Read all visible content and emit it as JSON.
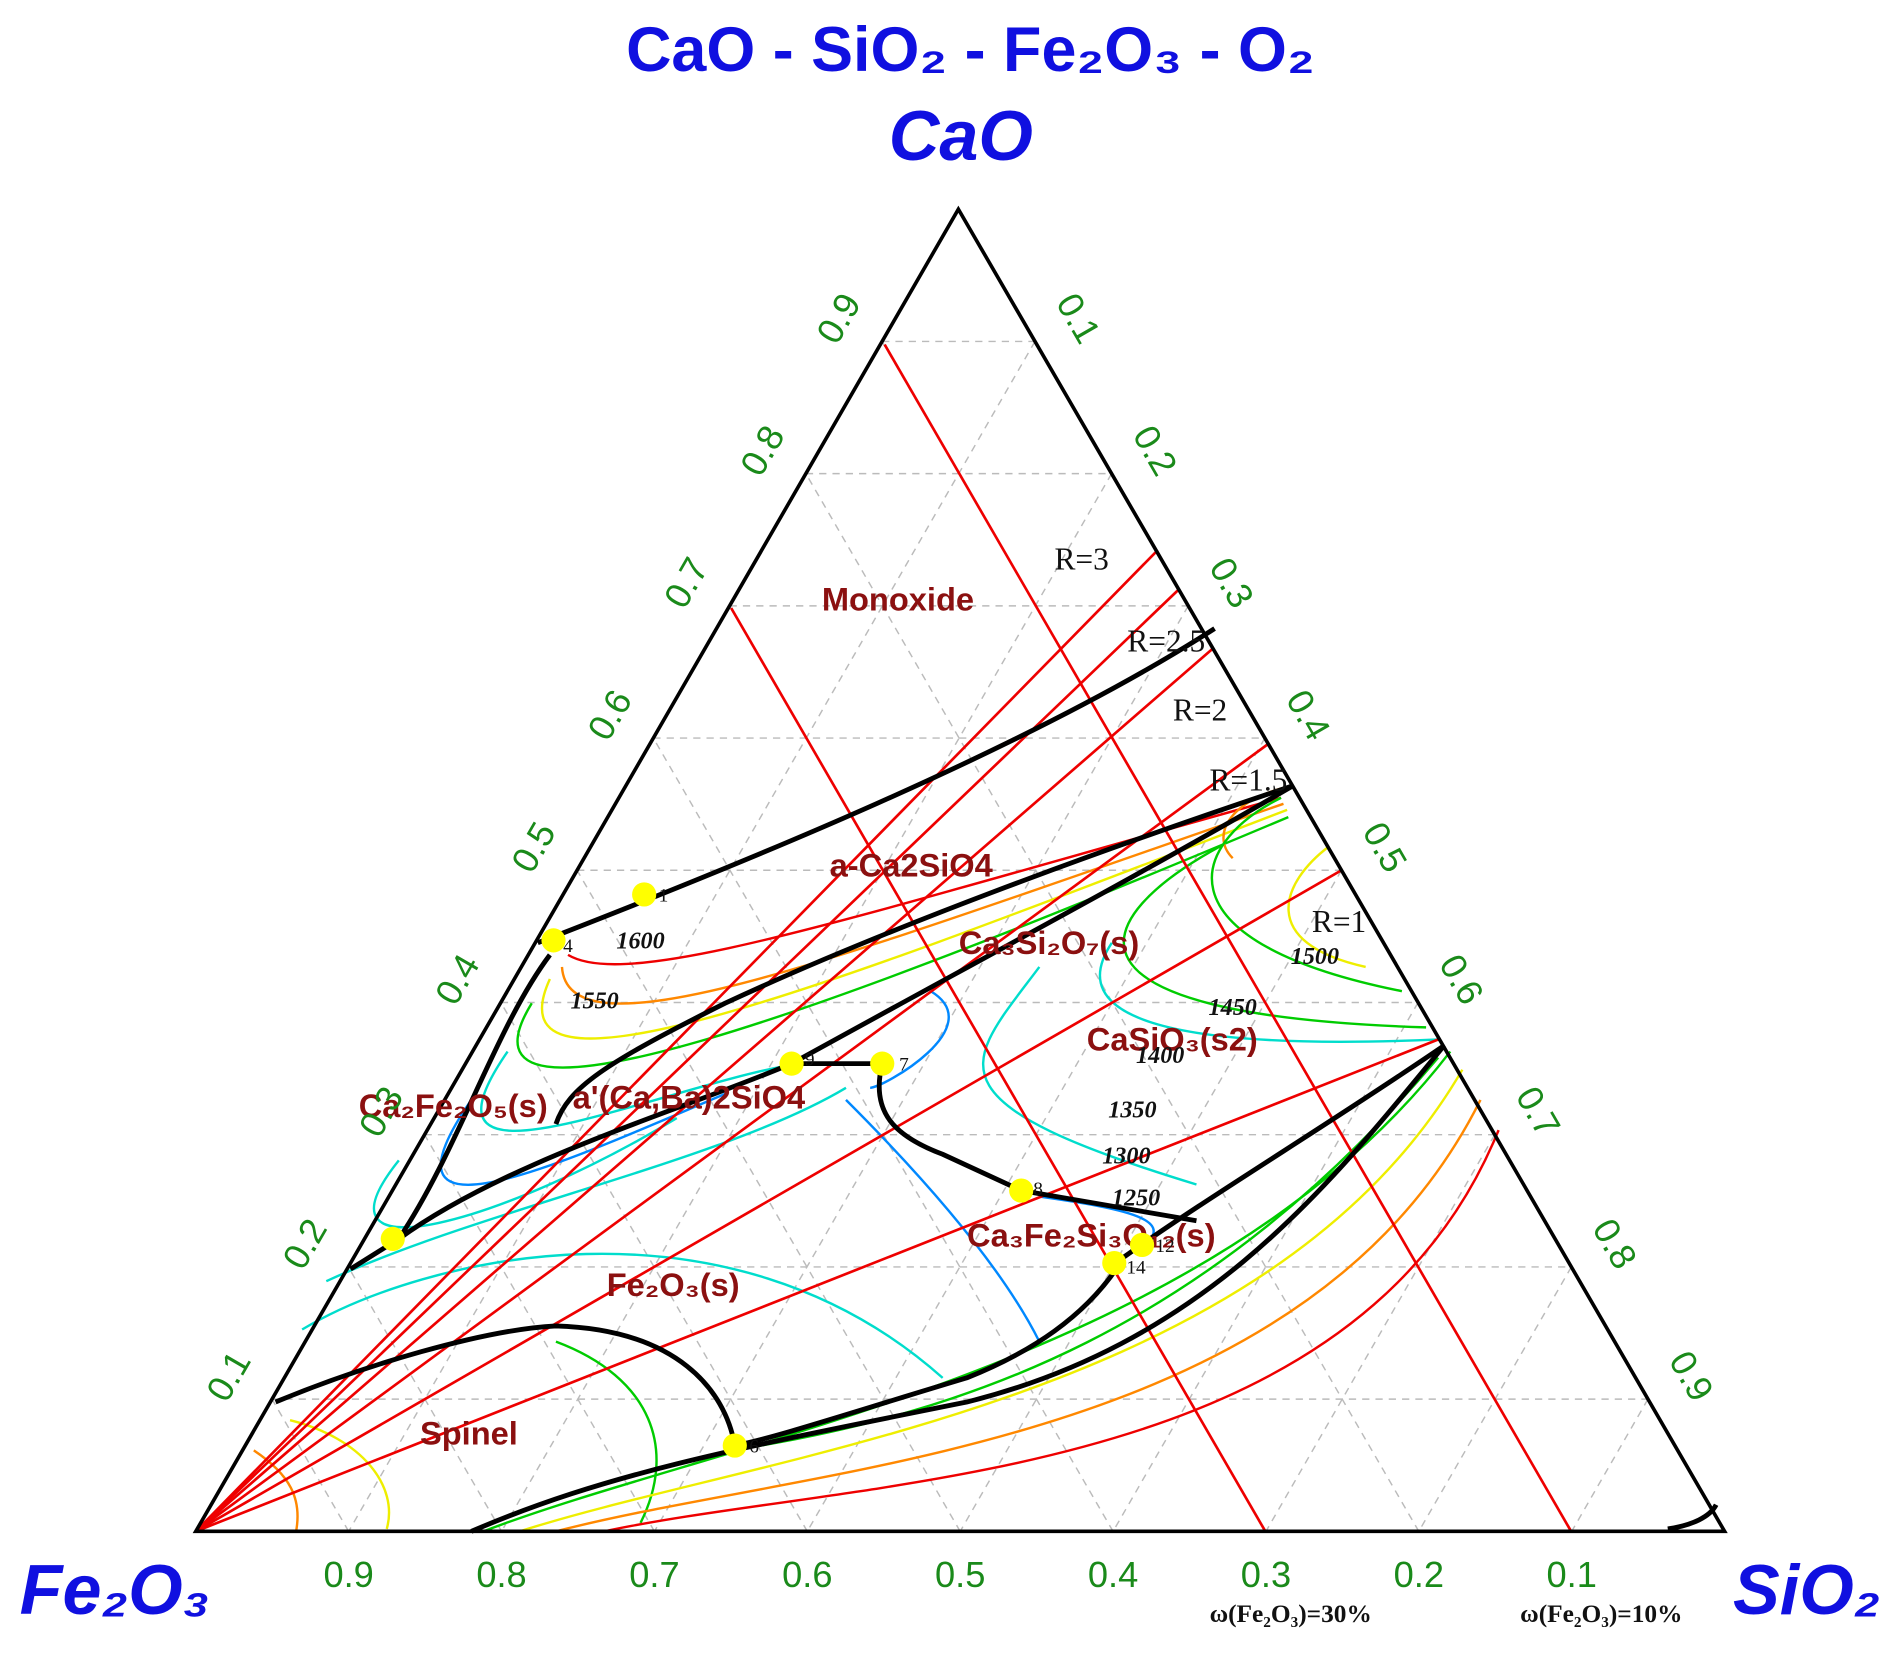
{
  "title": "CaO - SiO₂ - Fe₂O₃ - O₂",
  "vertices": {
    "top": "CaO",
    "left": "Fe₂O₃",
    "right": "SiO₂"
  },
  "axis_ticks": {
    "left": [
      0.1,
      0.2,
      0.3,
      0.4,
      0.5,
      0.6,
      0.7,
      0.8,
      0.9
    ],
    "right": [
      0.1,
      0.2,
      0.3,
      0.4,
      0.5,
      0.6,
      0.7,
      0.8,
      0.9
    ],
    "bottom": [
      0.9,
      0.8,
      0.7,
      0.6,
      0.5,
      0.4,
      0.3,
      0.2,
      0.1
    ]
  },
  "phase_regions": [
    "Monoxide",
    "a-Ca2SiO4",
    "Ca₃Si₂O₇(s)",
    "CaSiO₃(s2)",
    "Ca₂Fe₂O₅(s)",
    "a'(Ca,Ba)2SiO4",
    "Ca₃Fe₂Si₃O₁₂(s)",
    "Fe₂O₃(s)",
    "Spinel"
  ],
  "ratio_lines": [
    "R=3",
    "R=2.5",
    "R=2",
    "R=1.5",
    "R=1"
  ],
  "isotherms": [
    1600,
    1550,
    1500,
    1450,
    1400,
    1350,
    1300,
    1250
  ],
  "points": [
    "1",
    "4",
    "6",
    "7",
    "8",
    "9",
    "12",
    "14"
  ],
  "fe2o3_lines": [
    "ω(Fe₂O₃)=30%",
    "ω(Fe₂O₃)=10%"
  ]
}
